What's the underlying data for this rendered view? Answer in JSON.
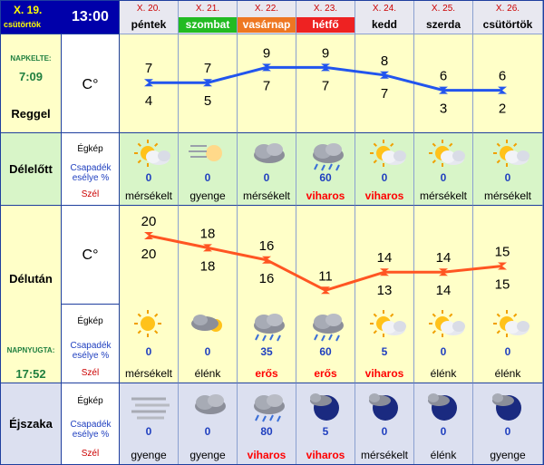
{
  "header": {
    "date": "X. 19.",
    "weekday": "csütörtök",
    "time": "13:00"
  },
  "left": {
    "sunrise_label": "NAPKELTE:",
    "sunrise": "7:09",
    "morning": "Reggel",
    "forenoon": "Délelőtt",
    "afternoon": "Délután",
    "sunset_label": "NAPNYUGTA:",
    "sunset": "17:52",
    "night": "Éjszaka"
  },
  "labels": {
    "unit": "C°",
    "sky": "Égkép",
    "precip": "Csapadék esélye %",
    "wind": "Szél"
  },
  "colors": {
    "header_bg": "#0000aa",
    "yellow_bg": "#ffffc8",
    "green_bg": "#d8f5c8",
    "night_bg": "#dce0f0",
    "blue_line": "#2255ee",
    "orange_line": "#ff5522",
    "wind_red": "#ff0000"
  },
  "days": [
    {
      "date": "X. 20.",
      "name": "péntek",
      "name_bg": "#e8e8f0",
      "name_color": "#000000",
      "morning": {
        "high": 7,
        "low": 4
      },
      "forenoon": {
        "icon": "sun-cloud-icon",
        "precip": "0",
        "wind": "mérsékelt",
        "wind_red": false
      },
      "afternoon": {
        "high": 20,
        "low": 20,
        "icon": "sun-icon",
        "precip": "0",
        "wind": "mérsékelt",
        "wind_red": false
      },
      "night": {
        "icon": "fog-icon",
        "precip": "0",
        "wind": "gyenge",
        "wind_red": false
      }
    },
    {
      "date": "X. 21.",
      "name": "szombat",
      "name_bg": "#22bb22",
      "name_color": "#ffffff",
      "morning": {
        "high": 7,
        "low": 5
      },
      "forenoon": {
        "icon": "sun-fog-icon",
        "precip": "0",
        "wind": "gyenge",
        "wind_red": false
      },
      "afternoon": {
        "high": 18,
        "low": 18,
        "icon": "cloud-sun-icon",
        "precip": "0",
        "wind": "élénk",
        "wind_red": false
      },
      "night": {
        "icon": "cloud-icon",
        "precip": "0",
        "wind": "gyenge",
        "wind_red": false
      }
    },
    {
      "date": "X. 22.",
      "name": "vasárnap",
      "name_bg": "#ee7722",
      "name_color": "#ffffff",
      "morning": {
        "high": 9,
        "low": 7
      },
      "forenoon": {
        "icon": "cloud-icon",
        "precip": "0",
        "wind": "mérsékelt",
        "wind_red": false
      },
      "afternoon": {
        "high": 16,
        "low": 16,
        "icon": "rain-icon",
        "precip": "35",
        "wind": "erős",
        "wind_red": true
      },
      "night": {
        "icon": "rain-icon",
        "precip": "80",
        "wind": "viharos",
        "wind_red": true
      }
    },
    {
      "date": "X. 23.",
      "name": "hétfő",
      "name_bg": "#ee2222",
      "name_color": "#ffffff",
      "morning": {
        "high": 9,
        "low": 7
      },
      "forenoon": {
        "icon": "rain-icon",
        "precip": "60",
        "wind": "viharos",
        "wind_red": true
      },
      "afternoon": {
        "high": 11,
        "low": 11,
        "icon": "rain-icon",
        "precip": "60",
        "wind": "erős",
        "wind_red": true
      },
      "night": {
        "icon": "moon-cloud-icon",
        "precip": "5",
        "wind": "viharos",
        "wind_red": true
      }
    },
    {
      "date": "X. 24.",
      "name": "kedd",
      "name_bg": "#e8e8f0",
      "name_color": "#000000",
      "morning": {
        "high": 8,
        "low": 7
      },
      "forenoon": {
        "icon": "sun-cloud-icon",
        "precip": "0",
        "wind": "viharos",
        "wind_red": true
      },
      "afternoon": {
        "high": 14,
        "low": 13,
        "icon": "sun-cloud-icon",
        "precip": "5",
        "wind": "viharos",
        "wind_red": true
      },
      "night": {
        "icon": "moon-cloud-icon",
        "precip": "0",
        "wind": "mérsékelt",
        "wind_red": false
      }
    },
    {
      "date": "X. 25.",
      "name": "szerda",
      "name_bg": "#e8e8f0",
      "name_color": "#000000",
      "morning": {
        "high": 6,
        "low": 3
      },
      "forenoon": {
        "icon": "sun-cloud-icon",
        "precip": "0",
        "wind": "mérsékelt",
        "wind_red": false
      },
      "afternoon": {
        "high": 14,
        "low": 14,
        "icon": "sun-cloud-icon",
        "precip": "0",
        "wind": "élénk",
        "wind_red": false
      },
      "night": {
        "icon": "moon-cloud-icon",
        "precip": "0",
        "wind": "élénk",
        "wind_red": false
      }
    },
    {
      "date": "X. 26.",
      "name": "csütörtök",
      "name_bg": "#e8e8f0",
      "name_color": "#000000",
      "morning": {
        "high": 6,
        "low": 2
      },
      "forenoon": {
        "icon": "sun-cloud-icon",
        "precip": "0",
        "wind": "mérsékelt",
        "wind_red": false
      },
      "afternoon": {
        "high": 15,
        "low": 15,
        "icon": "sun-cloud-icon",
        "precip": "0",
        "wind": "élénk",
        "wind_red": false
      },
      "night": {
        "icon": "moon-cloud-icon",
        "precip": "0",
        "wind": "gyenge",
        "wind_red": false
      }
    }
  ],
  "chart_data": [
    {
      "type": "line",
      "x": [
        "X. 20.",
        "X. 21.",
        "X. 22.",
        "X. 23.",
        "X. 24.",
        "X. 25.",
        "X. 26."
      ],
      "series": [
        {
          "values": [
            7,
            7,
            9,
            9,
            8,
            6,
            6
          ]
        },
        {
          "values": [
            4,
            5,
            7,
            7,
            7,
            3,
            2
          ]
        }
      ],
      "ylabel": "C°"
    },
    {
      "type": "line",
      "x": [
        "X. 20.",
        "X. 21.",
        "X. 22.",
        "X. 23.",
        "X. 24.",
        "X. 25.",
        "X. 26."
      ],
      "series": [
        {
          "values": [
            20,
            18,
            16,
            11,
            14,
            14,
            15
          ]
        },
        {
          "values": [
            20,
            18,
            16,
            11,
            13,
            14,
            15
          ]
        }
      ],
      "ylabel": "C°"
    }
  ]
}
